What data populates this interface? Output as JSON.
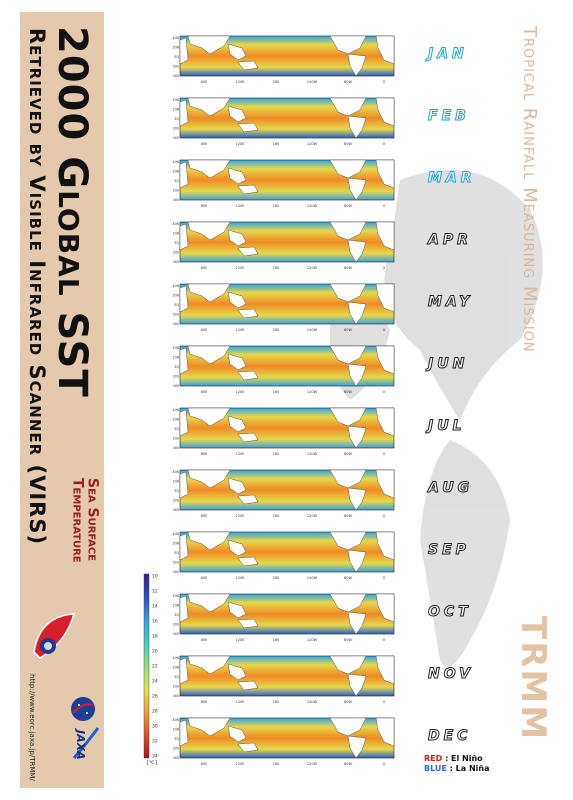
{
  "poster": {
    "title": "2000 Global SST",
    "subtitle": "Retrieved by Visible Infrared Scanner (VIRS)",
    "sst_label_line1": "Sea Surface",
    "sst_label_line2": "Temperature",
    "url": "http://www.eorc.jaxa.jp/TRMM/",
    "jaxa_wordmark": "JAXA",
    "mission_name": "Tropical Rainfall Measuring Mission",
    "mission_abbrev": "TRMM"
  },
  "months": [
    {
      "label": "JAN",
      "style": "cyan"
    },
    {
      "label": "FEB",
      "style": "cyan"
    },
    {
      "label": "MAR",
      "style": "cyan"
    },
    {
      "label": "APR",
      "style": "black"
    },
    {
      "label": "MAY",
      "style": "black"
    },
    {
      "label": "JUN",
      "style": "black"
    },
    {
      "label": "JUL",
      "style": "black"
    },
    {
      "label": "AUG",
      "style": "black"
    },
    {
      "label": "SEP",
      "style": "black"
    },
    {
      "label": "OCT",
      "style": "black"
    },
    {
      "label": "NOV",
      "style": "black"
    },
    {
      "label": "DEC",
      "style": "black"
    }
  ],
  "map_axes": {
    "lon_ticks": [
      "60E",
      "120E",
      "180",
      "120W",
      "60W",
      "0"
    ],
    "lat_ticks": [
      "40N",
      "20N",
      "EQ",
      "20S",
      "40S"
    ]
  },
  "colorbar": {
    "ticks": [
      "10",
      "12",
      "14",
      "16",
      "18",
      "20",
      "22",
      "24",
      "26",
      "28",
      "30",
      "32",
      "34"
    ],
    "unit": "[℃]",
    "colors": [
      "#3b1e8a",
      "#2a4fd0",
      "#2ea3e6",
      "#3fd0c8",
      "#8fe07a",
      "#e6e04a",
      "#f2a12a",
      "#e4501e",
      "#b01010"
    ]
  },
  "legend": {
    "red_key": "RED",
    "red_desc": ": El Niño",
    "blue_key": "BLUE",
    "blue_desc": ": La Niña"
  }
}
